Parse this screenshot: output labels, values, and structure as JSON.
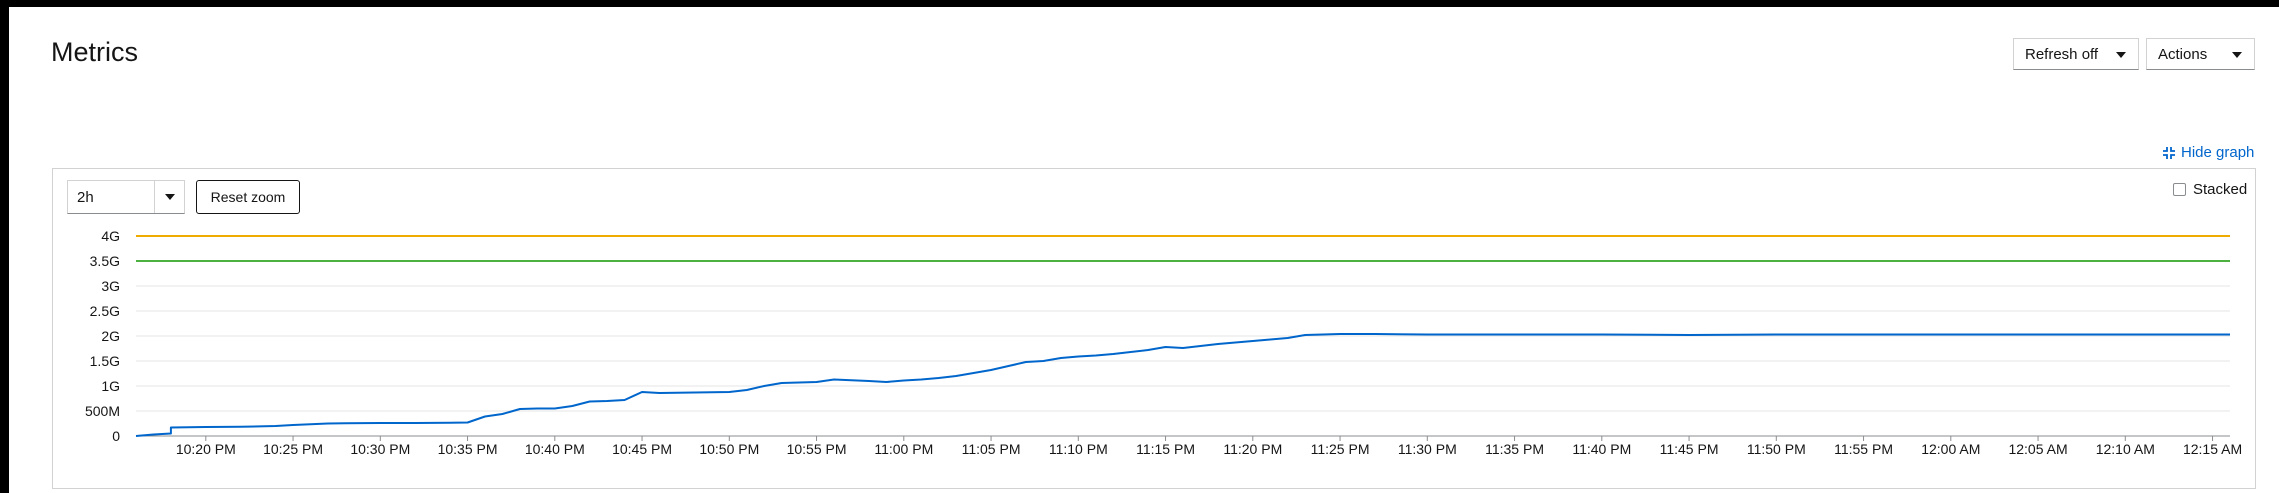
{
  "page": {
    "title": "Metrics",
    "refresh_label": "Refresh off",
    "actions_label": "Actions",
    "hide_graph_label": "Hide graph",
    "hide_graph_icon": "compress-icon",
    "link_color": "#0066cc"
  },
  "graph": {
    "range_value": "2h",
    "reset_zoom_label": "Reset zoom",
    "stacked_label": "Stacked",
    "stacked_checked": false
  },
  "chart_data": {
    "type": "line",
    "y_unit": "bytes",
    "ylim": [
      0,
      4000000000
    ],
    "y_ticks": [
      0,
      500000000,
      1000000000,
      1500000000,
      2000000000,
      2500000000,
      3000000000,
      3500000000,
      4000000000
    ],
    "y_tick_labels": [
      "0",
      "500M",
      "1G",
      "1.5G",
      "2G",
      "2.5G",
      "3G",
      "3.5G",
      "4G"
    ],
    "x_range": [
      "10:16 PM",
      "12:16 AM"
    ],
    "x_ticks": [
      "10:20 PM",
      "10:25 PM",
      "10:30 PM",
      "10:35 PM",
      "10:40 PM",
      "10:45 PM",
      "10:50 PM",
      "10:55 PM",
      "11:00 PM",
      "11:05 PM",
      "11:10 PM",
      "11:15 PM",
      "11:20 PM",
      "11:25 PM",
      "11:30 PM",
      "11:35 PM",
      "11:40 PM",
      "11:45 PM",
      "11:50 PM",
      "11:55 PM",
      "12:00 AM",
      "12:05 AM",
      "12:10 AM",
      "12:15 AM"
    ],
    "grid": true,
    "series": [
      {
        "color": "#f0ab00",
        "x": [
          "10:16 PM",
          "12:16 AM"
        ],
        "values": [
          4000000000,
          4000000000
        ]
      },
      {
        "color": "#4cb140",
        "x": [
          "10:16 PM",
          "12:16 AM"
        ],
        "values": [
          3500000000,
          3500000000
        ]
      },
      {
        "color": "#0066cc",
        "x": [
          "10:16 PM",
          "10:17 PM",
          "10:18 PM",
          "10:18 PM",
          "10:19 PM",
          "10:20 PM",
          "10:22 PM",
          "10:24 PM",
          "10:25 PM",
          "10:26 PM",
          "10:27 PM",
          "10:28 PM",
          "10:30 PM",
          "10:32 PM",
          "10:34 PM",
          "10:35 PM",
          "10:36 PM",
          "10:37 PM",
          "10:38 PM",
          "10:39 PM",
          "10:40 PM",
          "10:41 PM",
          "10:42 PM",
          "10:43 PM",
          "10:44 PM",
          "10:45 PM",
          "10:46 PM",
          "10:48 PM",
          "10:50 PM",
          "10:51 PM",
          "10:52 PM",
          "10:53 PM",
          "10:55 PM",
          "10:56 PM",
          "10:58 PM",
          "10:59 PM",
          "11:00 PM",
          "11:01 PM",
          "11:02 PM",
          "11:03 PM",
          "11:04 PM",
          "11:05 PM",
          "11:06 PM",
          "11:07 PM",
          "11:08 PM",
          "11:09 PM",
          "11:10 PM",
          "11:11 PM",
          "11:12 PM",
          "11:13 PM",
          "11:14 PM",
          "11:15 PM",
          "11:16 PM",
          "11:17 PM",
          "11:18 PM",
          "11:19 PM",
          "11:20 PM",
          "11:21 PM",
          "11:22 PM",
          "11:23 PM",
          "11:25 PM",
          "11:27 PM",
          "11:30 PM",
          "11:40 PM",
          "11:45 PM",
          "11:50 PM",
          "12:00 AM",
          "12:16 AM"
        ],
        "values": [
          0,
          30000000,
          50000000,
          170000000,
          175000000,
          180000000,
          185000000,
          200000000,
          220000000,
          235000000,
          250000000,
          255000000,
          260000000,
          260000000,
          265000000,
          270000000,
          390000000,
          440000000,
          540000000,
          550000000,
          550000000,
          600000000,
          690000000,
          700000000,
          720000000,
          880000000,
          860000000,
          870000000,
          880000000,
          920000000,
          1000000000,
          1060000000,
          1080000000,
          1130000000,
          1100000000,
          1080000000,
          1110000000,
          1130000000,
          1160000000,
          1200000000,
          1260000000,
          1320000000,
          1400000000,
          1480000000,
          1500000000,
          1560000000,
          1590000000,
          1610000000,
          1640000000,
          1680000000,
          1720000000,
          1780000000,
          1760000000,
          1800000000,
          1840000000,
          1870000000,
          1900000000,
          1930000000,
          1960000000,
          2020000000,
          2040000000,
          2040000000,
          2030000000,
          2030000000,
          2020000000,
          2030000000,
          2030000000,
          2030000000
        ]
      }
    ]
  }
}
